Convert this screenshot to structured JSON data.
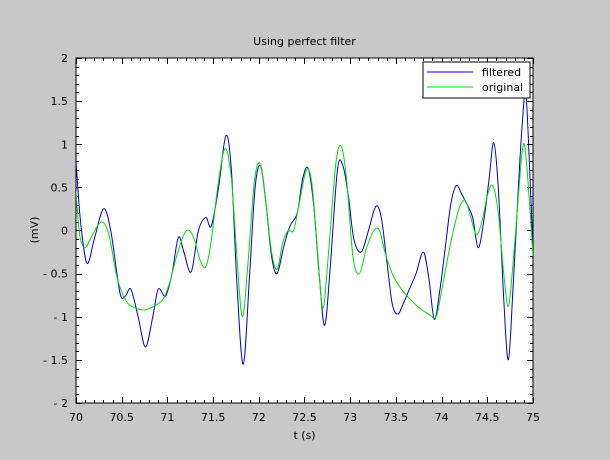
{
  "chart_data": {
    "type": "line",
    "title": "Using perfect filter",
    "xlabel": "t (s)",
    "ylabel": "(mV)",
    "xlim": [
      70,
      75
    ],
    "ylim": [
      -2,
      2
    ],
    "xticks": [
      70,
      70.5,
      71,
      71.5,
      72,
      72.5,
      73,
      73.5,
      74,
      74.5,
      75
    ],
    "xtick_labels": [
      "70",
      "70.5",
      "71",
      "71.5",
      "72",
      "72.5",
      "73",
      "73.5",
      "74",
      "74.5",
      "75"
    ],
    "yticks": [
      -2,
      -1.5,
      -1,
      -0.5,
      0,
      0.5,
      1,
      1.5,
      2
    ],
    "ytick_labels": [
      "- 2",
      "- 1.5",
      "- 1",
      "- 0.5",
      "0",
      "0.5",
      "1",
      "1.5",
      "2"
    ],
    "grid": false,
    "legend_position": "top-right",
    "series": [
      {
        "name": "filtered",
        "color": "#0000cc",
        "points": [
          [
            70.0,
            0.8
          ],
          [
            70.05,
            0.1
          ],
          [
            70.12,
            -0.38
          ],
          [
            70.2,
            -0.1
          ],
          [
            70.3,
            0.25
          ],
          [
            70.38,
            0.0
          ],
          [
            70.48,
            -0.72
          ],
          [
            70.54,
            -0.76
          ],
          [
            70.6,
            -0.68
          ],
          [
            70.68,
            -1.0
          ],
          [
            70.76,
            -1.35
          ],
          [
            70.84,
            -1.0
          ],
          [
            70.9,
            -0.68
          ],
          [
            70.98,
            -0.76
          ],
          [
            71.05,
            -0.5
          ],
          [
            71.12,
            -0.08
          ],
          [
            71.18,
            -0.25
          ],
          [
            71.26,
            -0.48
          ],
          [
            71.34,
            0.0
          ],
          [
            71.42,
            0.15
          ],
          [
            71.48,
            0.05
          ],
          [
            71.56,
            0.5
          ],
          [
            71.64,
            1.1
          ],
          [
            71.7,
            0.7
          ],
          [
            71.76,
            -0.6
          ],
          [
            71.83,
            -1.55
          ],
          [
            71.9,
            -0.5
          ],
          [
            71.96,
            0.5
          ],
          [
            72.02,
            0.75
          ],
          [
            72.08,
            0.3
          ],
          [
            72.14,
            -0.3
          ],
          [
            72.2,
            -0.5
          ],
          [
            72.27,
            -0.2
          ],
          [
            72.34,
            0.05
          ],
          [
            72.42,
            0.2
          ],
          [
            72.48,
            0.6
          ],
          [
            72.54,
            0.72
          ],
          [
            72.6,
            0.3
          ],
          [
            72.66,
            -0.5
          ],
          [
            72.72,
            -1.1
          ],
          [
            72.78,
            -0.45
          ],
          [
            72.86,
            0.7
          ],
          [
            72.92,
            0.75
          ],
          [
            72.98,
            0.4
          ],
          [
            73.04,
            -0.1
          ],
          [
            73.12,
            -0.25
          ],
          [
            73.2,
            0.0
          ],
          [
            73.28,
            0.28
          ],
          [
            73.34,
            0.15
          ],
          [
            73.4,
            -0.35
          ],
          [
            73.46,
            -0.85
          ],
          [
            73.52,
            -0.97
          ],
          [
            73.58,
            -0.85
          ],
          [
            73.64,
            -0.7
          ],
          [
            73.72,
            -0.5
          ],
          [
            73.8,
            -0.25
          ],
          [
            73.86,
            -0.55
          ],
          [
            73.92,
            -1.03
          ],
          [
            73.98,
            -0.7
          ],
          [
            74.04,
            -0.2
          ],
          [
            74.1,
            0.3
          ],
          [
            74.16,
            0.52
          ],
          [
            74.22,
            0.42
          ],
          [
            74.28,
            0.3
          ],
          [
            74.34,
            0.15
          ],
          [
            74.4,
            -0.2
          ],
          [
            74.46,
            0.1
          ],
          [
            74.52,
            0.6
          ],
          [
            74.57,
            1.02
          ],
          [
            74.62,
            0.5
          ],
          [
            74.68,
            -0.8
          ],
          [
            74.73,
            -1.5
          ],
          [
            74.78,
            -0.7
          ],
          [
            74.84,
            0.5
          ],
          [
            74.88,
            1.2
          ],
          [
            74.92,
            1.6
          ],
          [
            74.96,
            0.8
          ],
          [
            75.0,
            -0.25
          ]
        ]
      },
      {
        "name": "original",
        "color": "#00dd00",
        "points": [
          [
            70.0,
            0.45
          ],
          [
            70.04,
            -0.05
          ],
          [
            70.1,
            -0.2
          ],
          [
            70.18,
            -0.05
          ],
          [
            70.28,
            0.1
          ],
          [
            70.36,
            -0.05
          ],
          [
            70.45,
            -0.55
          ],
          [
            70.55,
            -0.82
          ],
          [
            70.65,
            -0.9
          ],
          [
            70.75,
            -0.92
          ],
          [
            70.85,
            -0.88
          ],
          [
            70.95,
            -0.8
          ],
          [
            71.02,
            -0.62
          ],
          [
            71.1,
            -0.3
          ],
          [
            71.18,
            -0.05
          ],
          [
            71.24,
            0.0
          ],
          [
            71.3,
            -0.12
          ],
          [
            71.36,
            -0.35
          ],
          [
            71.42,
            -0.42
          ],
          [
            71.48,
            -0.12
          ],
          [
            71.55,
            0.5
          ],
          [
            71.63,
            0.95
          ],
          [
            71.7,
            0.6
          ],
          [
            71.76,
            -0.3
          ],
          [
            71.82,
            -1.0
          ],
          [
            71.88,
            -0.4
          ],
          [
            71.95,
            0.55
          ],
          [
            72.01,
            0.78
          ],
          [
            72.07,
            0.4
          ],
          [
            72.14,
            -0.25
          ],
          [
            72.2,
            -0.45
          ],
          [
            72.26,
            -0.15
          ],
          [
            72.32,
            0.0
          ],
          [
            72.38,
            0.0
          ],
          [
            72.44,
            0.3
          ],
          [
            72.52,
            0.7
          ],
          [
            72.58,
            0.55
          ],
          [
            72.64,
            -0.2
          ],
          [
            72.7,
            -0.9
          ],
          [
            72.76,
            -0.3
          ],
          [
            72.84,
            0.75
          ],
          [
            72.9,
            0.98
          ],
          [
            72.96,
            0.6
          ],
          [
            73.03,
            -0.3
          ],
          [
            73.1,
            -0.5
          ],
          [
            73.18,
            -0.2
          ],
          [
            73.26,
            0.0
          ],
          [
            73.32,
            0.0
          ],
          [
            73.38,
            -0.25
          ],
          [
            73.46,
            -0.5
          ],
          [
            73.56,
            -0.68
          ],
          [
            73.66,
            -0.8
          ],
          [
            73.76,
            -0.9
          ],
          [
            73.86,
            -0.97
          ],
          [
            73.94,
            -1.0
          ],
          [
            74.0,
            -0.7
          ],
          [
            74.07,
            -0.3
          ],
          [
            74.14,
            0.05
          ],
          [
            74.2,
            0.28
          ],
          [
            74.26,
            0.35
          ],
          [
            74.32,
            0.15
          ],
          [
            74.38,
            -0.05
          ],
          [
            74.44,
            0.1
          ],
          [
            74.5,
            0.4
          ],
          [
            74.56,
            0.52
          ],
          [
            74.62,
            0.2
          ],
          [
            74.68,
            -0.5
          ],
          [
            74.73,
            -0.88
          ],
          [
            74.78,
            -0.4
          ],
          [
            74.84,
            0.4
          ],
          [
            74.88,
            0.9
          ],
          [
            74.91,
            0.98
          ],
          [
            74.95,
            0.5
          ],
          [
            75.0,
            -0.3
          ]
        ]
      }
    ]
  }
}
